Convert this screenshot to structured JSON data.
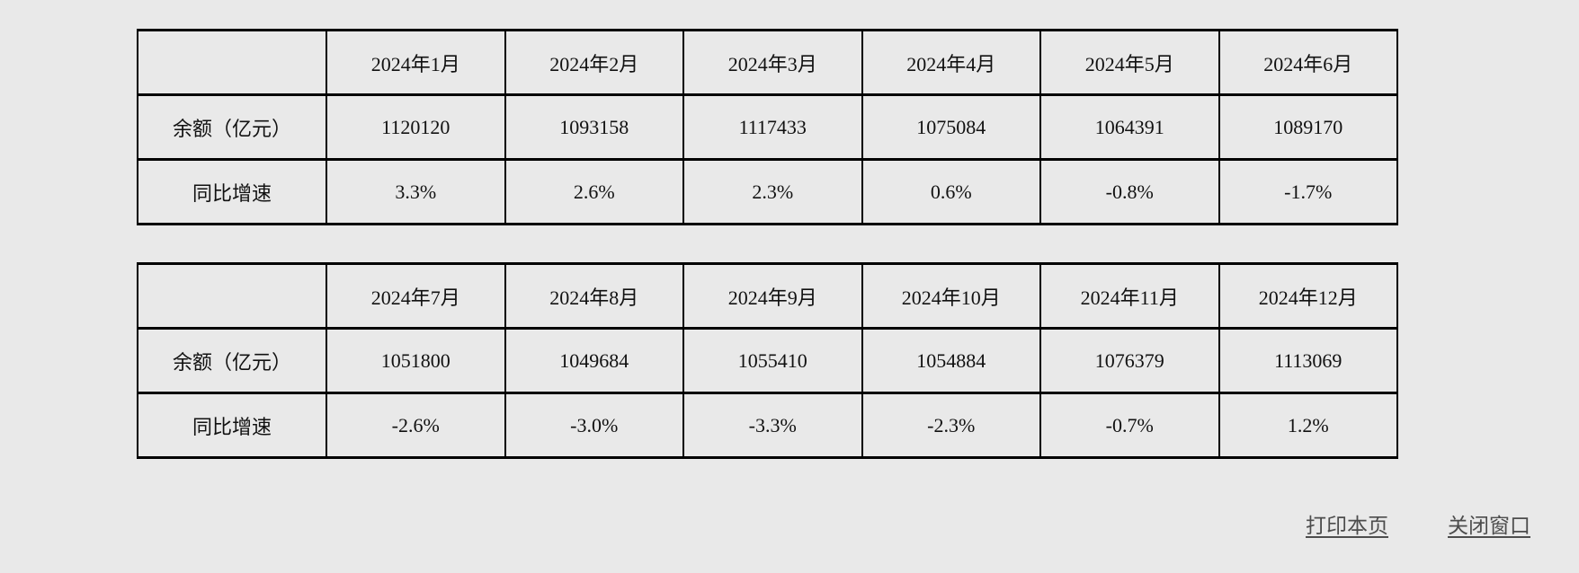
{
  "page": {
    "background_color": "#e9e9e9",
    "table_border_color": "#000000",
    "table_text_color": "#111111",
    "link_color": "#4d4d4d"
  },
  "tables": [
    {
      "columns": [
        "2024年1月",
        "2024年2月",
        "2024年3月",
        "2024年4月",
        "2024年5月",
        "2024年6月"
      ],
      "row_labels": [
        "余额（亿元）",
        "同比增速"
      ],
      "balance": [
        "1120120",
        "1093158",
        "1117433",
        "1075084",
        "1064391",
        "1089170"
      ],
      "growth": [
        "3.3%",
        "2.6%",
        "2.3%",
        "0.6%",
        "-0.8%",
        "-1.7%"
      ]
    },
    {
      "columns": [
        "2024年7月",
        "2024年8月",
        "2024年9月",
        "2024年10月",
        "2024年11月",
        "2024年12月"
      ],
      "row_labels": [
        "余额（亿元）",
        "同比增速"
      ],
      "balance": [
        "1051800",
        "1049684",
        "1055410",
        "1054884",
        "1076379",
        "1113069"
      ],
      "growth": [
        "-2.6%",
        "-3.0%",
        "-3.3%",
        "-2.3%",
        "-0.7%",
        "1.2%"
      ]
    }
  ],
  "footer": {
    "print_link": "打印本页",
    "close_link": "关闭窗口"
  }
}
